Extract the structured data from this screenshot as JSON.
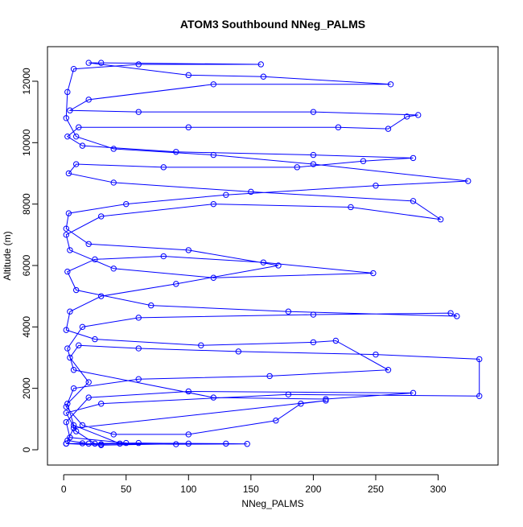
{
  "chart_data": {
    "type": "line",
    "title": "ATOM3 Southbound NNeg_PALMS",
    "x_label": "NNeg_PALMS",
    "y_label": "Altitude (m)",
    "color": "#0000ff",
    "markers": true,
    "xlim": [
      -13,
      348
    ],
    "ylim": [
      -498,
      13126
    ],
    "xticks": [
      0,
      50,
      100,
      150,
      200,
      250,
      300
    ],
    "yticks": [
      0,
      2000,
      4000,
      6000,
      8000,
      10000,
      12000
    ],
    "x": [
      2,
      15,
      30,
      45,
      8,
      3,
      20,
      5,
      12,
      60,
      140,
      250,
      333,
      333,
      180,
      30,
      2,
      10,
      25,
      90,
      147,
      130,
      50,
      5,
      2,
      20,
      100,
      280,
      210,
      120,
      8,
      3,
      15,
      60,
      200,
      310,
      315,
      180,
      70,
      10,
      3,
      25,
      80,
      160,
      248,
      120,
      40,
      5,
      2,
      30,
      120,
      230,
      302,
      280,
      150,
      40,
      4,
      10,
      80,
      187,
      240,
      280,
      200,
      90,
      15,
      3,
      12,
      100,
      220,
      260,
      275,
      284,
      200,
      60,
      5,
      20,
      120,
      262,
      160,
      100,
      20,
      30,
      158,
      60,
      8,
      3,
      2,
      10,
      40,
      120,
      200,
      324,
      250,
      130,
      50,
      4,
      2,
      20,
      100,
      172,
      90,
      30,
      5,
      2,
      25,
      110,
      200,
      218,
      260,
      165,
      60,
      8,
      2,
      15,
      40,
      100,
      170,
      190,
      210,
      8,
      3,
      20,
      60,
      100,
      30,
      2
    ],
    "values": [
      200,
      210,
      180,
      200,
      800,
      1500,
      2200,
      3000,
      3400,
      3300,
      3200,
      3100,
      2950,
      1750,
      1800,
      1500,
      1200,
      600,
      200,
      180,
      190,
      200,
      220,
      400,
      900,
      1700,
      1900,
      1850,
      1650,
      1700,
      2600,
      3300,
      4000,
      4300,
      4400,
      4450,
      4350,
      4500,
      4700,
      5200,
      5800,
      6200,
      6300,
      6100,
      5750,
      5600,
      5900,
      6500,
      7000,
      7600,
      8000,
      7900,
      7500,
      8100,
      8400,
      8700,
      9000,
      9300,
      9200,
      9200,
      9400,
      9500,
      9600,
      9700,
      9900,
      10200,
      10500,
      10500,
      10500,
      10450,
      10850,
      10900,
      11000,
      11000,
      11050,
      11400,
      11900,
      11900,
      12150,
      12200,
      12600,
      12600,
      12550,
      12550,
      12400,
      11650,
      10800,
      10200,
      9800,
      9600,
      9300,
      8750,
      8600,
      8300,
      8000,
      7700,
      7200,
      6700,
      6500,
      6000,
      5400,
      5000,
      4500,
      3900,
      3600,
      3400,
      3500,
      3550,
      2600,
      2400,
      2300,
      2000,
      1400,
      800,
      500,
      500,
      950,
      1500,
      1600,
      700,
      300,
      200,
      220,
      200,
      150,
      200
    ]
  }
}
